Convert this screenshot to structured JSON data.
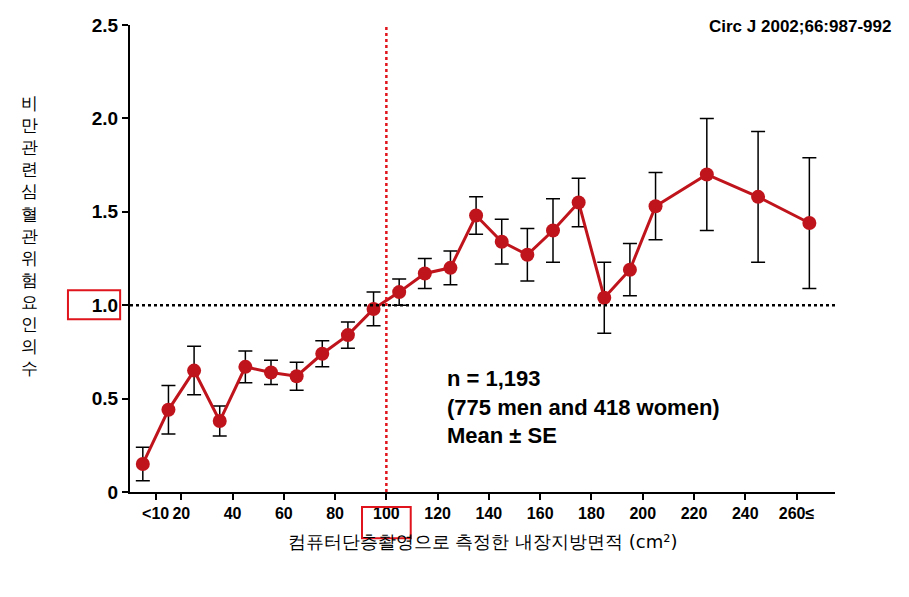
{
  "chart_data": {
    "type": "line",
    "source": "Circ J 2002;66:987-992",
    "annotations": [
      "n = 1,193",
      "(775 men and 418 women)",
      "Mean ± SE"
    ],
    "x_label": "컴퓨터단층촬영으로 측정한 내장지방면적 (cm²)",
    "y_label": "비만관련심혈관위험요인의수",
    "x": [
      5,
      15,
      25,
      35,
      45,
      55,
      65,
      75,
      85,
      95,
      105,
      115,
      125,
      135,
      145,
      155,
      165,
      175,
      185,
      195,
      205,
      225,
      245,
      265
    ],
    "values": [
      0.15,
      0.44,
      0.65,
      0.38,
      0.67,
      0.64,
      0.62,
      0.74,
      0.84,
      0.98,
      1.07,
      1.17,
      1.2,
      1.48,
      1.34,
      1.27,
      1.4,
      1.55,
      1.04,
      1.19,
      1.53,
      1.7,
      1.58,
      1.44
    ],
    "errors": [
      0.09,
      0.13,
      0.13,
      0.08,
      0.085,
      0.065,
      0.075,
      0.07,
      0.07,
      0.09,
      0.07,
      0.08,
      0.09,
      0.1,
      0.12,
      0.14,
      0.17,
      0.13,
      0.19,
      0.14,
      0.18,
      0.3,
      0.35,
      0.35
    ],
    "color": "#c0141c",
    "marker": "circle",
    "line_style": "solid",
    "xlim": [
      0,
      275
    ],
    "xticks": [
      {
        "value": 10,
        "label": "<10"
      },
      20,
      40,
      60,
      80,
      100,
      120,
      140,
      160,
      180,
      200,
      220,
      240,
      {
        "value": 260,
        "label": "260≤"
      }
    ],
    "ylim": [
      0,
      2.5
    ],
    "yticks": [
      0,
      0.5,
      {
        "value": 1,
        "label": "1.0"
      },
      1.5,
      {
        "value": 2,
        "label": "2.0"
      },
      2.5
    ],
    "hline": 1,
    "vline": 100,
    "grid": false
  }
}
